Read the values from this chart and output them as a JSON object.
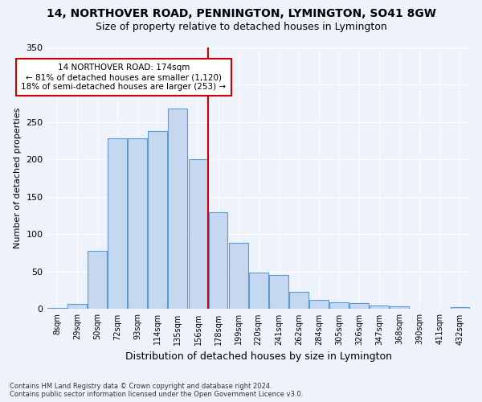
{
  "title1": "14, NORTHOVER ROAD, PENNINGTON, LYMINGTON, SO41 8GW",
  "title2": "Size of property relative to detached houses in Lymington",
  "xlabel": "Distribution of detached houses by size in Lymington",
  "ylabel": "Number of detached properties",
  "categories": [
    "8sqm",
    "29sqm",
    "50sqm",
    "72sqm",
    "93sqm",
    "114sqm",
    "135sqm",
    "156sqm",
    "178sqm",
    "199sqm",
    "220sqm",
    "241sqm",
    "262sqm",
    "284sqm",
    "305sqm",
    "326sqm",
    "347sqm",
    "368sqm",
    "390sqm",
    "411sqm",
    "432sqm"
  ],
  "values": [
    2,
    7,
    78,
    228,
    228,
    238,
    268,
    200,
    130,
    89,
    49,
    46,
    23,
    12,
    9,
    8,
    5,
    4,
    0,
    0,
    3
  ],
  "bar_color": "#c5d8f0",
  "bar_edge_color": "#5b9bd5",
  "vline_index": 8,
  "vline_color": "#cc0000",
  "annotation_text": "14 NORTHOVER ROAD: 174sqm\n← 81% of detached houses are smaller (1,120)\n18% of semi-detached houses are larger (253) →",
  "annotation_box_color": "#cc0000",
  "background_color": "#eef2fb",
  "grid_color": "#ffffff",
  "footnote": "Contains HM Land Registry data © Crown copyright and database right 2024.\nContains public sector information licensed under the Open Government Licence v3.0.",
  "ylim": [
    0,
    350
  ],
  "title1_fontsize": 10,
  "title2_fontsize": 9,
  "xlabel_fontsize": 9,
  "ylabel_fontsize": 8
}
